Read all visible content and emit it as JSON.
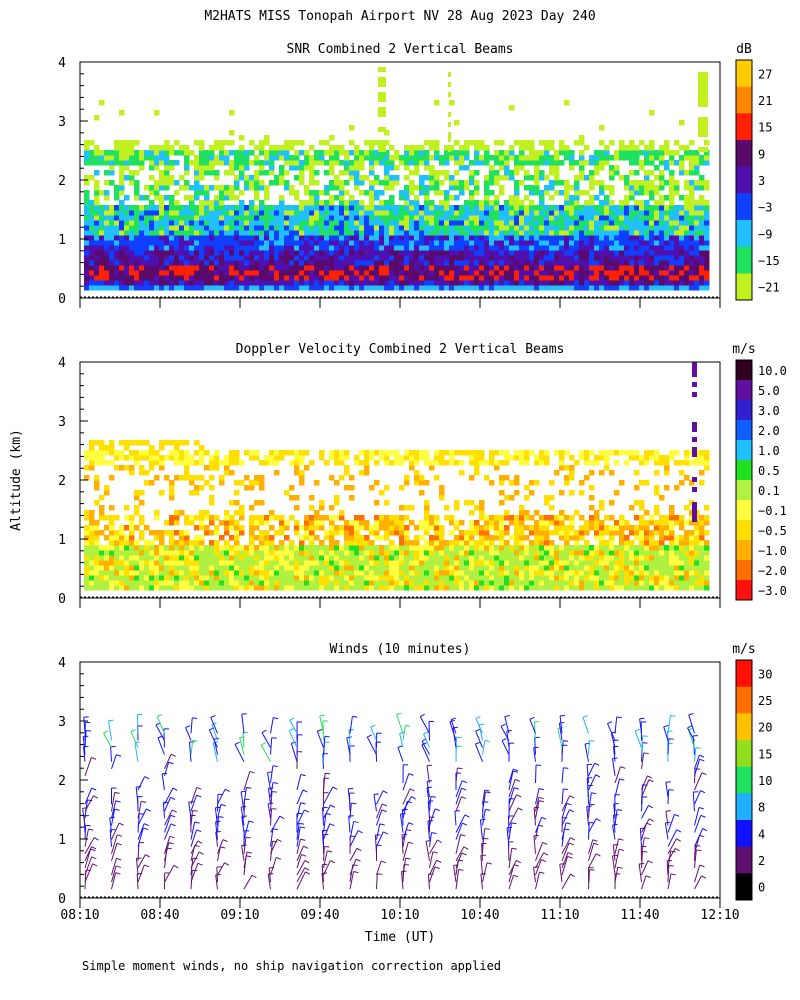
{
  "header": {
    "title": "M2HATS MISS Tonopah Airport NV  28 Aug 2023 Day 240"
  },
  "y_axis_label": "Altitude (km)",
  "footer": {
    "note": "Simple moment winds, no ship navigation correction applied"
  },
  "chart_data": [
    {
      "type": "heatmap",
      "title": "SNR Combined 2 Vertical Beams",
      "unit": "dB",
      "ylim": [
        0,
        4
      ],
      "y_ticks": [
        "0",
        "1",
        "2",
        "3",
        "4"
      ],
      "colorbar_labels": [
        "27",
        "21",
        "15",
        "9",
        "3",
        "−3",
        "−9",
        "−15",
        "−21"
      ],
      "colorbar_colors": [
        "#ffcc00",
        "#ff8800",
        "#ff2000",
        "#5a0a6a",
        "#5010b0",
        "#1040ff",
        "#20c0ff",
        "#20e060",
        "#c0f020"
      ]
    },
    {
      "type": "heatmap",
      "title": "Doppler Velocity Combined 2 Vertical Beams",
      "unit": "m/s",
      "ylim": [
        0,
        4
      ],
      "y_ticks": [
        "0",
        "1",
        "2",
        "3",
        "4"
      ],
      "colorbar_labels": [
        "10.0",
        "5.0",
        "3.0",
        "2.0",
        "1.0",
        "0.5",
        "0.1",
        "−0.1",
        "−0.5",
        "−1.0",
        "−2.0",
        "−3.0"
      ],
      "colorbar_colors": [
        "#300020",
        "#6010a0",
        "#3020d0",
        "#1060ff",
        "#20c0ff",
        "#20e020",
        "#b0f040",
        "#ffff40",
        "#ffe000",
        "#ffb000",
        "#ff7000",
        "#ff1010"
      ]
    },
    {
      "type": "scatter",
      "title": "Winds (10 minutes)",
      "unit": "m/s",
      "ylim": [
        0,
        4
      ],
      "y_ticks": [
        "0",
        "1",
        "2",
        "3",
        "4"
      ],
      "colorbar_labels": [
        "30",
        "25",
        "20",
        "15",
        "10",
        "8",
        "4",
        "2",
        "0"
      ],
      "colorbar_colors": [
        "#ff1000",
        "#ff7000",
        "#ffc000",
        "#90e020",
        "#20e060",
        "#20b0ff",
        "#1010ff",
        "#601070",
        "#000000"
      ],
      "x_ticks": [
        "08:10",
        "08:40",
        "09:10",
        "09:40",
        "10:10",
        "10:40",
        "11:10",
        "11:40",
        "12:10"
      ],
      "xlabel": "Time (UT)"
    }
  ]
}
